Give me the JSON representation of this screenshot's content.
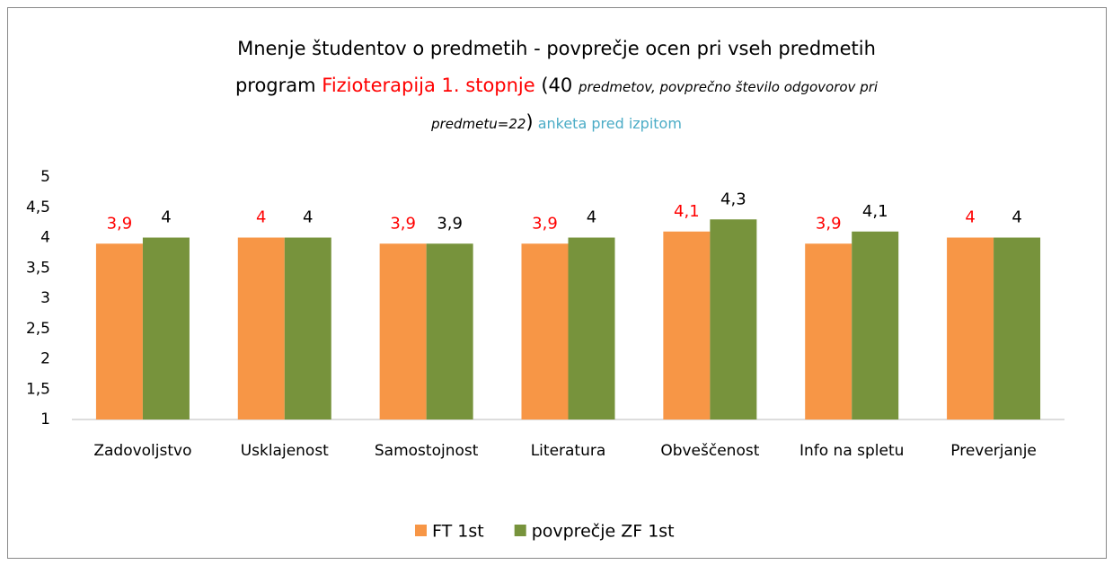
{
  "chart_data": {
    "type": "bar",
    "title": [
      [
        "Mnenje študentov o predmetih - povprečje ocen pri vseh predmetih"
      ],
      [
        "program ",
        "Fizioterapija 1. stopnje",
        " (40 ",
        "predmetov, povprečno število odgovorov pri"
      ],
      [
        "predmetu=22",
        ")",
        " anketa pred izpitom"
      ]
    ],
    "categories": [
      "Zadovoljstvo",
      "Usklajenost",
      "Samostojnost",
      "Literatura",
      "Obveščenost",
      "Info na spletu",
      "Preverjanje"
    ],
    "series": [
      {
        "name": "FT 1st",
        "color": "#f79646",
        "label_color": "#ff0000",
        "values": [
          3.9,
          4,
          3.9,
          3.9,
          4.1,
          3.9,
          4
        ],
        "value_labels": [
          "3,9",
          "4",
          "3,9",
          "3,9",
          "4,1",
          "3,9",
          "4"
        ]
      },
      {
        "name": "povprečje ZF 1st",
        "color": "#77933c",
        "label_color": "#000000",
        "values": [
          4,
          4,
          3.9,
          4,
          4.3,
          4.1,
          4
        ],
        "value_labels": [
          "4",
          "4",
          "3,9",
          "4",
          "4,3",
          "4,1",
          "4"
        ]
      }
    ],
    "ylim": [
      1,
      5
    ],
    "yticks": [
      1,
      {
        "value": 1.5,
        "label": "1,5"
      },
      2,
      {
        "value": 2.5,
        "label": "2,5"
      },
      3,
      {
        "value": 3.5,
        "label": "3,5"
      },
      4,
      {
        "value": 4.5,
        "label": "4,5"
      },
      5
    ],
    "legend": "bottom"
  }
}
